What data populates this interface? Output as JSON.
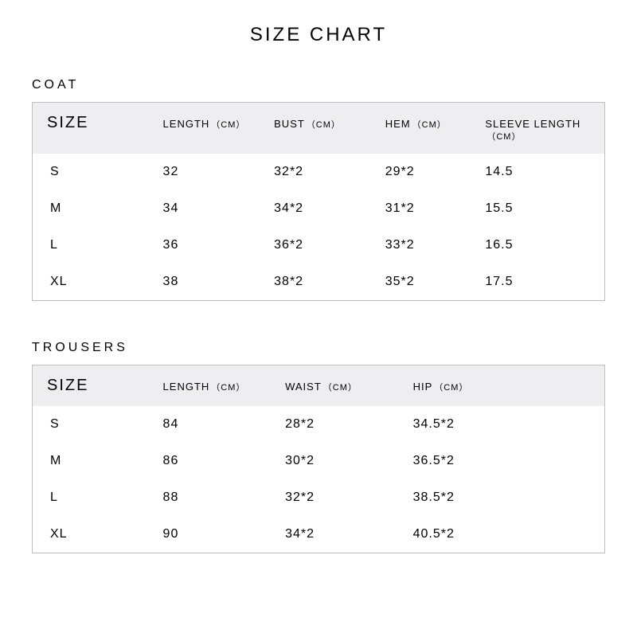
{
  "title": "SIZE CHART",
  "background_color": "#ffffff",
  "text_color": "#000000",
  "header_bg_color": "#eeedef",
  "border_color": "#c0c0c0",
  "title_fontsize": 24,
  "section_title_fontsize": 16,
  "size_header_fontsize": 20,
  "col_header_fontsize": 13,
  "unit_fontsize": 11,
  "cell_fontsize": 16,
  "coat": {
    "section_title": "COAT",
    "columns": [
      {
        "label": "SIZE",
        "unit": ""
      },
      {
        "label": "LENGTH",
        "unit": "（CM）"
      },
      {
        "label": "BUST",
        "unit": "（CM）"
      },
      {
        "label": "HEM",
        "unit": "（CM）"
      },
      {
        "label": "SLEEVE LENGTH",
        "unit": "（CM）"
      }
    ],
    "rows": [
      {
        "size": "S",
        "length": "32",
        "bust": "32*2",
        "hem": "29*2",
        "sleeve": "14.5"
      },
      {
        "size": "M",
        "length": "34",
        "bust": "34*2",
        "hem": "31*2",
        "sleeve": "15.5"
      },
      {
        "size": "L",
        "length": "36",
        "bust": "36*2",
        "hem": "33*2",
        "sleeve": "16.5"
      },
      {
        "size": "XL",
        "length": "38",
        "bust": "38*2",
        "hem": "35*2",
        "sleeve": "17.5"
      }
    ]
  },
  "trousers": {
    "section_title": "TROUSERS",
    "columns": [
      {
        "label": "SIZE",
        "unit": ""
      },
      {
        "label": "LENGTH",
        "unit": "（CM）"
      },
      {
        "label": "WAIST",
        "unit": "（CM）"
      },
      {
        "label": "HIP",
        "unit": "（CM）"
      }
    ],
    "rows": [
      {
        "size": "S",
        "length": "84",
        "waist": "28*2",
        "hip": "34.5*2"
      },
      {
        "size": "M",
        "length": "86",
        "waist": "30*2",
        "hip": "36.5*2"
      },
      {
        "size": "L",
        "length": "88",
        "waist": "32*2",
        "hip": "38.5*2"
      },
      {
        "size": "XL",
        "length": "90",
        "waist": "34*2",
        "hip": "40.5*2"
      }
    ]
  }
}
